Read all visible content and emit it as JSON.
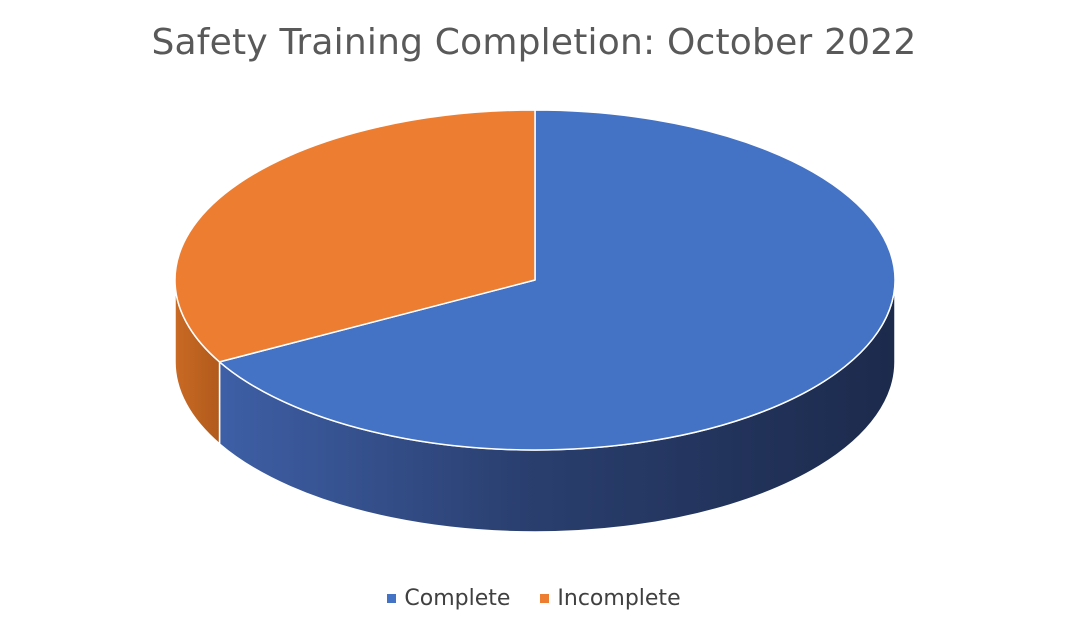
{
  "chart_data": {
    "type": "pie",
    "title": "Safety Training Completion: October 2022",
    "categories": [
      "Complete",
      "Incomplete"
    ],
    "values": [
      67,
      33
    ],
    "colors": [
      "#4472C4",
      "#ED7D31"
    ],
    "style": "3d",
    "legend_position": "bottom"
  }
}
